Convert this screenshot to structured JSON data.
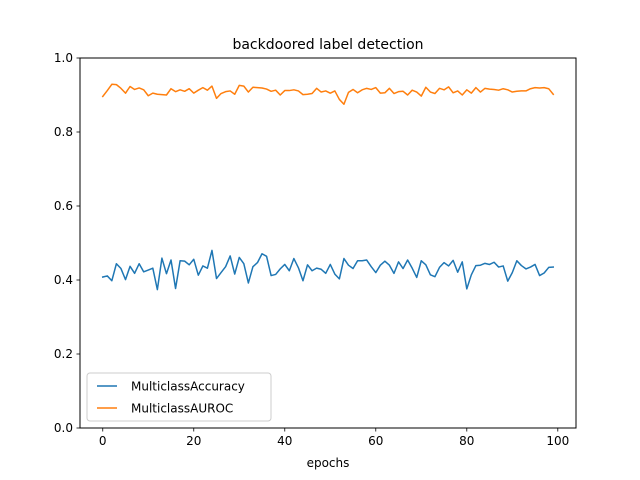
{
  "chart_data": {
    "type": "line",
    "title": "backdoored label detection",
    "xlabel": "epochs",
    "ylabel": "",
    "xlim": [
      -5,
      104
    ],
    "ylim": [
      0.0,
      1.0
    ],
    "xticks": [
      "0",
      "20",
      "40",
      "60",
      "80",
      "100"
    ],
    "xtick_values": [
      0,
      20,
      40,
      60,
      80,
      100
    ],
    "yticks": [
      "0.0",
      "0.2",
      "0.4",
      "0.6",
      "0.8",
      "1.0"
    ],
    "ytick_values": [
      0.0,
      0.2,
      0.4,
      0.6,
      0.8,
      1.0
    ],
    "grid": false,
    "legend_position": "lower-left",
    "x": [
      0,
      1,
      2,
      3,
      4,
      5,
      6,
      7,
      8,
      9,
      10,
      11,
      12,
      13,
      14,
      15,
      16,
      17,
      18,
      19,
      20,
      21,
      22,
      23,
      24,
      25,
      26,
      27,
      28,
      29,
      30,
      31,
      32,
      33,
      34,
      35,
      36,
      37,
      38,
      39,
      40,
      41,
      42,
      43,
      44,
      45,
      46,
      47,
      48,
      49,
      50,
      51,
      52,
      53,
      54,
      55,
      56,
      57,
      58,
      59,
      60,
      61,
      62,
      63,
      64,
      65,
      66,
      67,
      68,
      69,
      70,
      71,
      72,
      73,
      74,
      75,
      76,
      77,
      78,
      79,
      80,
      81,
      82,
      83,
      84,
      85,
      86,
      87,
      88,
      89,
      90,
      91,
      92,
      93,
      94,
      95,
      96,
      97,
      98,
      99
    ],
    "series": [
      {
        "name": "MulticlassAccuracy",
        "color": "#1f77b4",
        "values": [
          0.408,
          0.411,
          0.398,
          0.444,
          0.431,
          0.401,
          0.437,
          0.418,
          0.444,
          0.422,
          0.427,
          0.432,
          0.374,
          0.459,
          0.417,
          0.454,
          0.377,
          0.452,
          0.451,
          0.441,
          0.456,
          0.413,
          0.438,
          0.432,
          0.48,
          0.404,
          0.42,
          0.436,
          0.465,
          0.416,
          0.461,
          0.444,
          0.392,
          0.436,
          0.447,
          0.471,
          0.464,
          0.412,
          0.415,
          0.43,
          0.442,
          0.425,
          0.458,
          0.433,
          0.398,
          0.441,
          0.425,
          0.432,
          0.429,
          0.418,
          0.442,
          0.416,
          0.403,
          0.458,
          0.44,
          0.431,
          0.452,
          0.452,
          0.454,
          0.436,
          0.42,
          0.44,
          0.451,
          0.44,
          0.418,
          0.449,
          0.431,
          0.454,
          0.432,
          0.407,
          0.452,
          0.441,
          0.414,
          0.409,
          0.434,
          0.447,
          0.438,
          0.453,
          0.421,
          0.449,
          0.376,
          0.414,
          0.439,
          0.44,
          0.445,
          0.442,
          0.448,
          0.435,
          0.438,
          0.397,
          0.42,
          0.452,
          0.439,
          0.43,
          0.435,
          0.442,
          0.412,
          0.419,
          0.434,
          0.435
        ]
      },
      {
        "name": "MulticlassAUROC",
        "color": "#ff7f0e",
        "values": [
          0.896,
          0.912,
          0.929,
          0.928,
          0.918,
          0.905,
          0.923,
          0.915,
          0.919,
          0.914,
          0.898,
          0.905,
          0.902,
          0.901,
          0.9,
          0.917,
          0.909,
          0.914,
          0.91,
          0.917,
          0.905,
          0.913,
          0.92,
          0.913,
          0.924,
          0.891,
          0.904,
          0.909,
          0.911,
          0.902,
          0.926,
          0.924,
          0.908,
          0.921,
          0.92,
          0.919,
          0.916,
          0.91,
          0.913,
          0.9,
          0.912,
          0.912,
          0.914,
          0.911,
          0.901,
          0.902,
          0.904,
          0.918,
          0.908,
          0.911,
          0.905,
          0.911,
          0.888,
          0.875,
          0.907,
          0.915,
          0.906,
          0.914,
          0.918,
          0.915,
          0.92,
          0.905,
          0.906,
          0.918,
          0.904,
          0.909,
          0.91,
          0.9,
          0.913,
          0.908,
          0.897,
          0.921,
          0.908,
          0.904,
          0.918,
          0.914,
          0.922,
          0.906,
          0.911,
          0.9,
          0.914,
          0.905,
          0.92,
          0.908,
          0.918,
          0.916,
          0.915,
          0.913,
          0.917,
          0.914,
          0.908,
          0.91,
          0.911,
          0.911,
          0.917,
          0.92,
          0.919,
          0.92,
          0.917,
          0.902
        ]
      }
    ]
  }
}
